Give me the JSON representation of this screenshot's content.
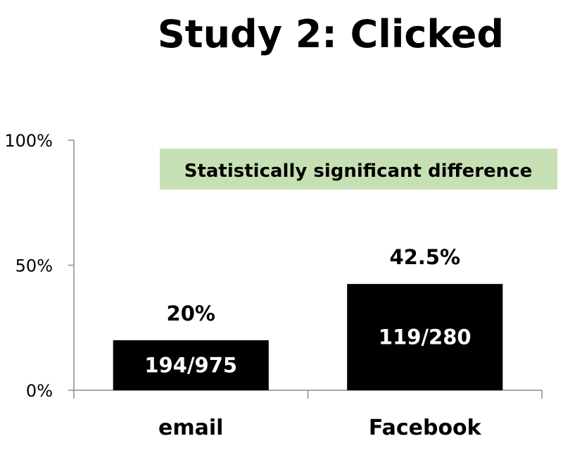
{
  "chart_data": {
    "type": "bar",
    "title": "Study 2: Clicked",
    "categories": [
      "email",
      "Facebook"
    ],
    "values": [
      20,
      42.5
    ],
    "value_labels": [
      "20%",
      "42.5%"
    ],
    "inner_labels": [
      "194/975",
      "119/280"
    ],
    "ylim": [
      0,
      100
    ],
    "y_ticks": [
      0,
      50,
      100
    ],
    "y_tick_labels": [
      "0%",
      "50%",
      "100%"
    ],
    "xlabel": "",
    "ylabel": "",
    "grid": false,
    "annotation": "Statistically significant difference"
  },
  "colors": {
    "bar": "#000000",
    "annotation_background": "#c6e0b4",
    "axis": "#8c8c8c",
    "inner_text": "#ffffff"
  }
}
